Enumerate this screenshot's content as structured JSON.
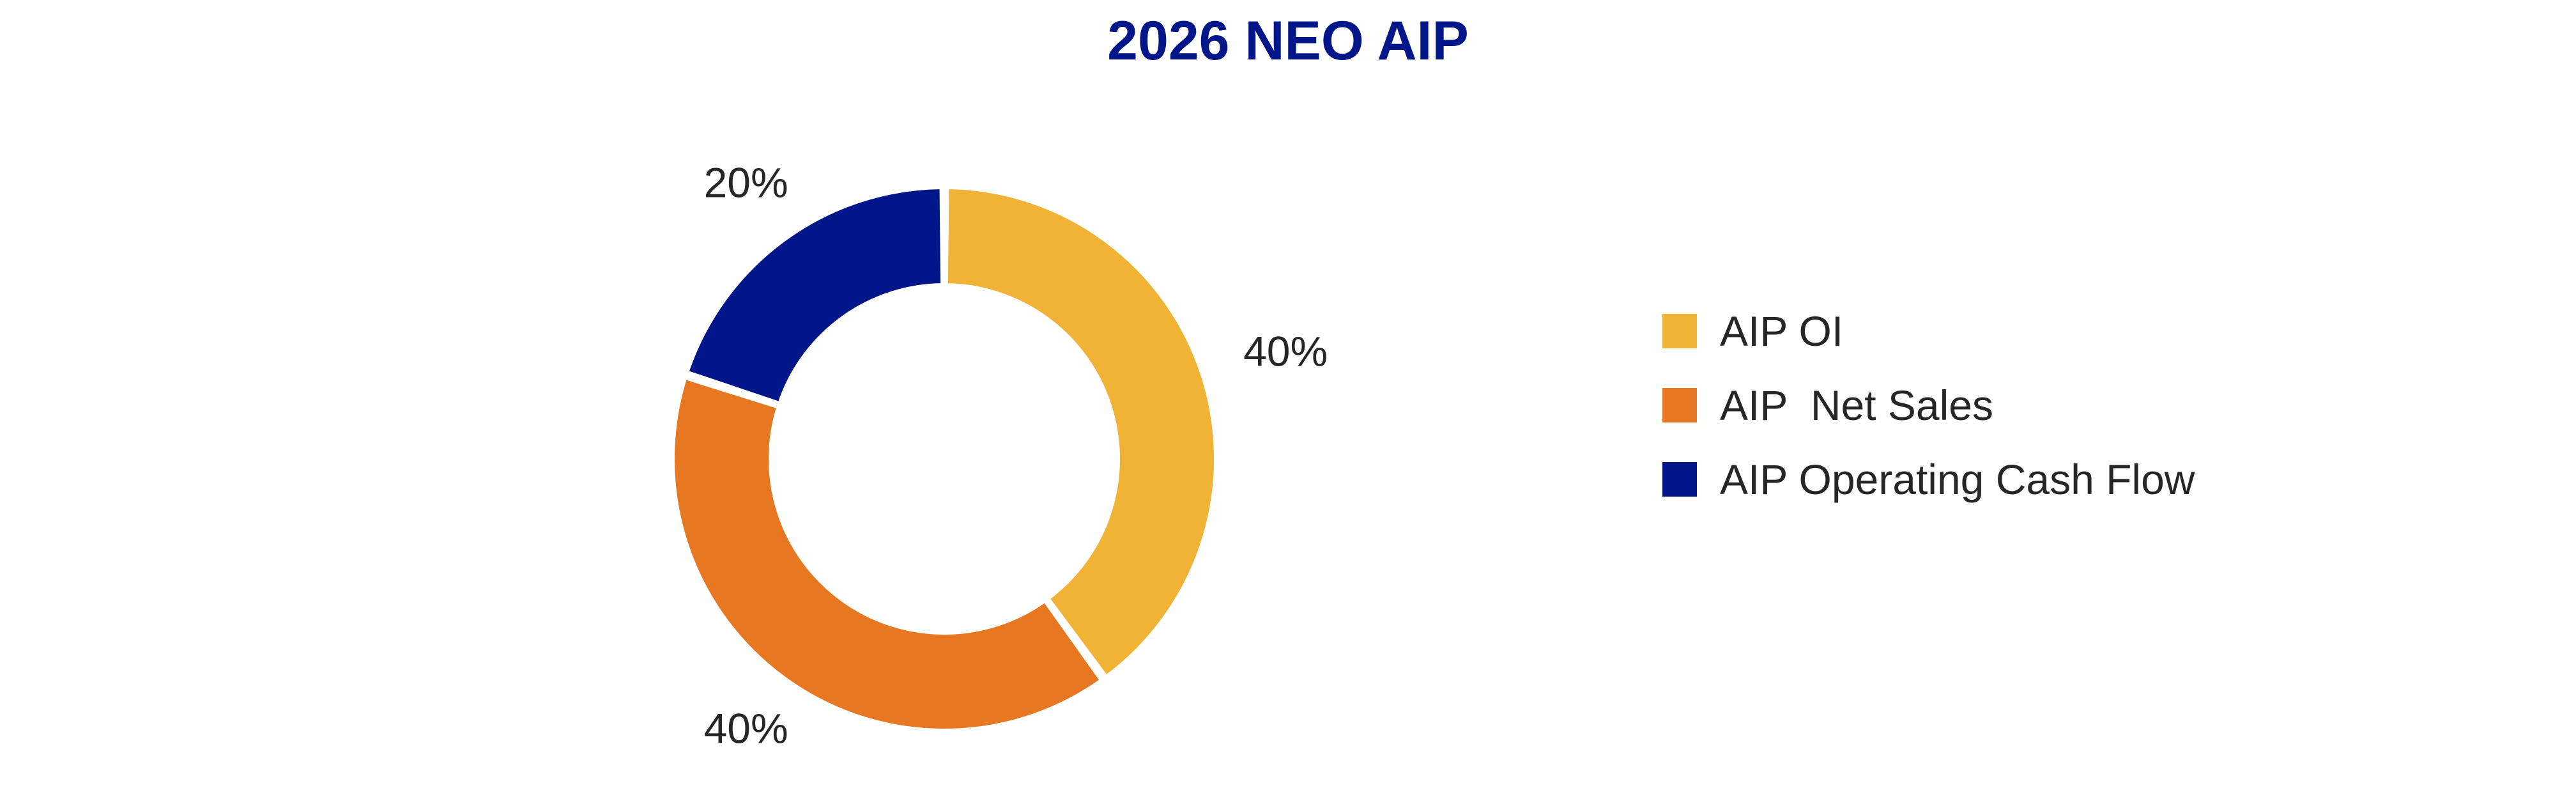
{
  "chart_data": {
    "type": "pie",
    "title": "2026 NEO AIP",
    "labels": [
      "AIP OI",
      "AIP  Net Sales",
      "AIP Operating Cash Flow"
    ],
    "values": [
      40,
      40,
      20
    ],
    "data_labels": [
      "40%",
      "40%",
      "20%"
    ],
    "colors": [
      "#F0B335",
      "#E87722",
      "#001689"
    ],
    "hole": true,
    "legend_position": "right"
  },
  "colors": {
    "title": "#001689",
    "label_text": "#262626",
    "background": "#FFFFFF"
  }
}
